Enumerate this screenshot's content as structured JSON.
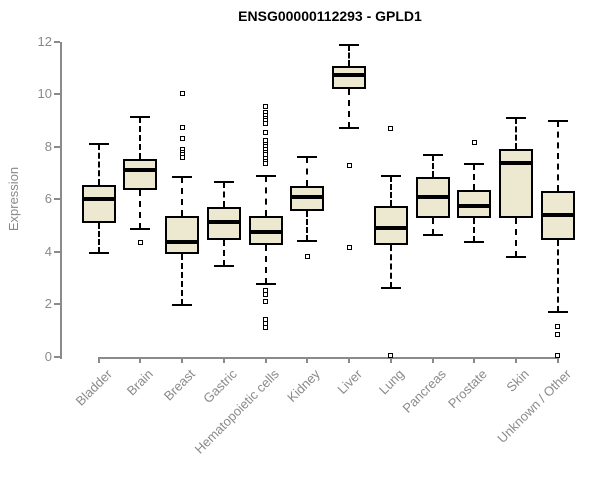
{
  "title": "ENSG00000112293 - GPLD1",
  "colors": {
    "background": "#FFFFFF",
    "box_fill": "#EDE8D0",
    "box_border": "#000000",
    "median": "#000000",
    "whisker": "#000000",
    "axis": "#8A8A8A",
    "tick_label": "#8A8A8A",
    "title": "#000000"
  },
  "chart_data": {
    "type": "boxplot",
    "title": "ENSG00000112293 - GPLD1",
    "xlabel": "",
    "ylabel": "Expression",
    "ylim": [
      0,
      12
    ],
    "yticks": [
      0,
      2,
      4,
      6,
      8,
      10,
      12
    ],
    "grid": false,
    "legend": "none",
    "x_label_rotation_deg": 45,
    "categories": [
      "Bladder",
      "Brain",
      "Breast",
      "Gastric",
      "Hematopoietic cells",
      "Kidney",
      "Liver",
      "Lung",
      "Pancreas",
      "Prostate",
      "Skin",
      "Unknown / Other"
    ],
    "series": [
      {
        "name": "Bladder",
        "whisker_low": 3.95,
        "q1": 5.1,
        "median": 6.0,
        "q3": 6.55,
        "whisker_high": 8.1,
        "outliers": []
      },
      {
        "name": "Brain",
        "whisker_low": 4.85,
        "q1": 6.35,
        "median": 7.1,
        "q3": 7.55,
        "whisker_high": 9.15,
        "outliers": [
          4.35
        ]
      },
      {
        "name": "Breast",
        "whisker_low": 1.95,
        "q1": 3.9,
        "median": 4.35,
        "q3": 5.35,
        "whisker_high": 6.85,
        "outliers": [
          10.05,
          8.75,
          8.3,
          7.9,
          7.8,
          7.7,
          7.6
        ]
      },
      {
        "name": "Gastric",
        "whisker_low": 3.45,
        "q1": 4.45,
        "median": 5.15,
        "q3": 5.7,
        "whisker_high": 6.65,
        "outliers": []
      },
      {
        "name": "Hematopoietic cells",
        "whisker_low": 2.75,
        "q1": 4.25,
        "median": 4.75,
        "q3": 5.35,
        "whisker_high": 6.9,
        "outliers": [
          9.55,
          9.3,
          9.2,
          9.1,
          9.0,
          8.9,
          8.55,
          8.25,
          8.1,
          8.0,
          7.9,
          7.8,
          7.7,
          7.55,
          7.45,
          7.35,
          2.5,
          2.35,
          2.1,
          1.4,
          1.25,
          1.1
        ]
      },
      {
        "name": "Kidney",
        "whisker_low": 4.4,
        "q1": 5.55,
        "median": 6.1,
        "q3": 6.5,
        "whisker_high": 7.6,
        "outliers": [
          3.8
        ]
      },
      {
        "name": "Liver",
        "whisker_low": 8.7,
        "q1": 10.2,
        "median": 10.75,
        "q3": 11.1,
        "whisker_high": 11.9,
        "outliers": [
          7.3,
          4.15
        ]
      },
      {
        "name": "Lung",
        "whisker_low": 2.6,
        "q1": 4.25,
        "median": 4.9,
        "q3": 5.75,
        "whisker_high": 6.9,
        "outliers": [
          8.7,
          0.05
        ]
      },
      {
        "name": "Pancreas",
        "whisker_low": 4.65,
        "q1": 5.3,
        "median": 6.1,
        "q3": 6.85,
        "whisker_high": 7.7,
        "outliers": []
      },
      {
        "name": "Prostate",
        "whisker_low": 4.35,
        "q1": 5.3,
        "median": 5.75,
        "q3": 6.35,
        "whisker_high": 7.35,
        "outliers": [
          8.15
        ]
      },
      {
        "name": "Skin",
        "whisker_low": 3.8,
        "q1": 5.3,
        "median": 7.4,
        "q3": 7.9,
        "whisker_high": 9.1,
        "outliers": []
      },
      {
        "name": "Unknown / Other",
        "whisker_low": 1.7,
        "q1": 4.45,
        "median": 5.4,
        "q3": 6.3,
        "whisker_high": 9.0,
        "outliers": [
          1.15,
          0.85,
          0.05
        ]
      }
    ]
  }
}
